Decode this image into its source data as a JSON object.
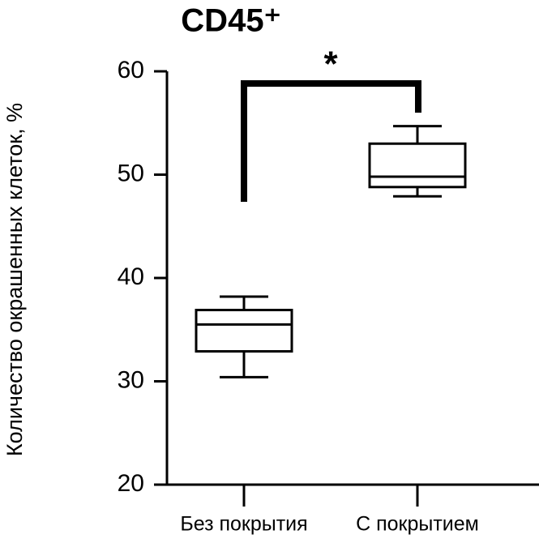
{
  "chart_data": {
    "type": "box",
    "title": "CD45⁺",
    "y_label": "Количество окрашенных клеток, %",
    "categories": [
      "Без покрытия",
      "С покрытием"
    ],
    "values": [
      {
        "min": 30.4,
        "q1": 32.9,
        "median": 35.5,
        "q3": 36.9,
        "max": 38.2
      },
      {
        "min": 47.9,
        "q1": 48.8,
        "median": 49.8,
        "q3": 53.0,
        "max": 54.7
      }
    ],
    "color": "#000000",
    "ylim": [
      20,
      60
    ],
    "yticks": [
      20,
      30,
      40,
      50,
      60
    ],
    "annotation": "*"
  }
}
